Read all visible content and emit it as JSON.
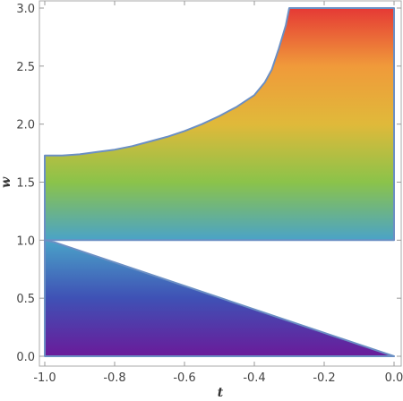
{
  "chart_data": {
    "type": "area",
    "title": "",
    "xlabel": "t",
    "ylabel": "w",
    "xlim": [
      -1.0,
      0.0
    ],
    "ylim": [
      0.0,
      3.0
    ],
    "x_ticks": [
      -1.0,
      -0.8,
      -0.6,
      -0.4,
      -0.2,
      0.0
    ],
    "x_tick_labels": [
      "-1.0",
      "-0.8",
      "-0.6",
      "-0.4",
      "-0.2",
      "0.0"
    ],
    "y_ticks": [
      0.0,
      0.5,
      1.0,
      1.5,
      2.0,
      2.5,
      3.0
    ],
    "y_tick_labels": [
      "0.0",
      "0.5",
      "1.0",
      "1.5",
      "2.0",
      "2.5",
      "3.0"
    ],
    "grid": false,
    "colormap": "rainbow by w (purple at 0 to red at 3)",
    "colors": {
      "gradient": [
        "#6a1b9a",
        "#3f51b5",
        "#4aa3c8",
        "#8bc34a",
        "#e0b93a",
        "#f09a3a",
        "#e53935"
      ],
      "boundary": "#6b8fc4",
      "frame": "#aaaaaa",
      "tick_text": "#444444"
    },
    "regions": [
      {
        "name": "lower",
        "boundary": [
          [
            -1.0,
            0.0
          ],
          [
            -1.0,
            1.0
          ],
          [
            -0.97,
            0.98
          ],
          [
            0.0,
            0.0
          ]
        ]
      },
      {
        "name": "upper",
        "boundary_curve_top": [
          [
            -1.0,
            1.73
          ],
          [
            -0.95,
            1.73
          ],
          [
            -0.9,
            1.74
          ],
          [
            -0.85,
            1.76
          ],
          [
            -0.8,
            1.78
          ],
          [
            -0.75,
            1.81
          ],
          [
            -0.7,
            1.85
          ],
          [
            -0.65,
            1.89
          ],
          [
            -0.6,
            1.94
          ],
          [
            -0.55,
            2.0
          ],
          [
            -0.5,
            2.07
          ],
          [
            -0.45,
            2.15
          ],
          [
            -0.4,
            2.25
          ],
          [
            -0.37,
            2.36
          ],
          [
            -0.35,
            2.47
          ],
          [
            -0.33,
            2.65
          ],
          [
            -0.31,
            2.85
          ],
          [
            -0.3,
            3.0
          ]
        ],
        "boundary": [
          [
            -1.0,
            1.0
          ],
          [
            0.0,
            1.0
          ],
          [
            0.0,
            3.0
          ],
          [
            -0.3,
            3.0
          ]
        ]
      }
    ]
  }
}
